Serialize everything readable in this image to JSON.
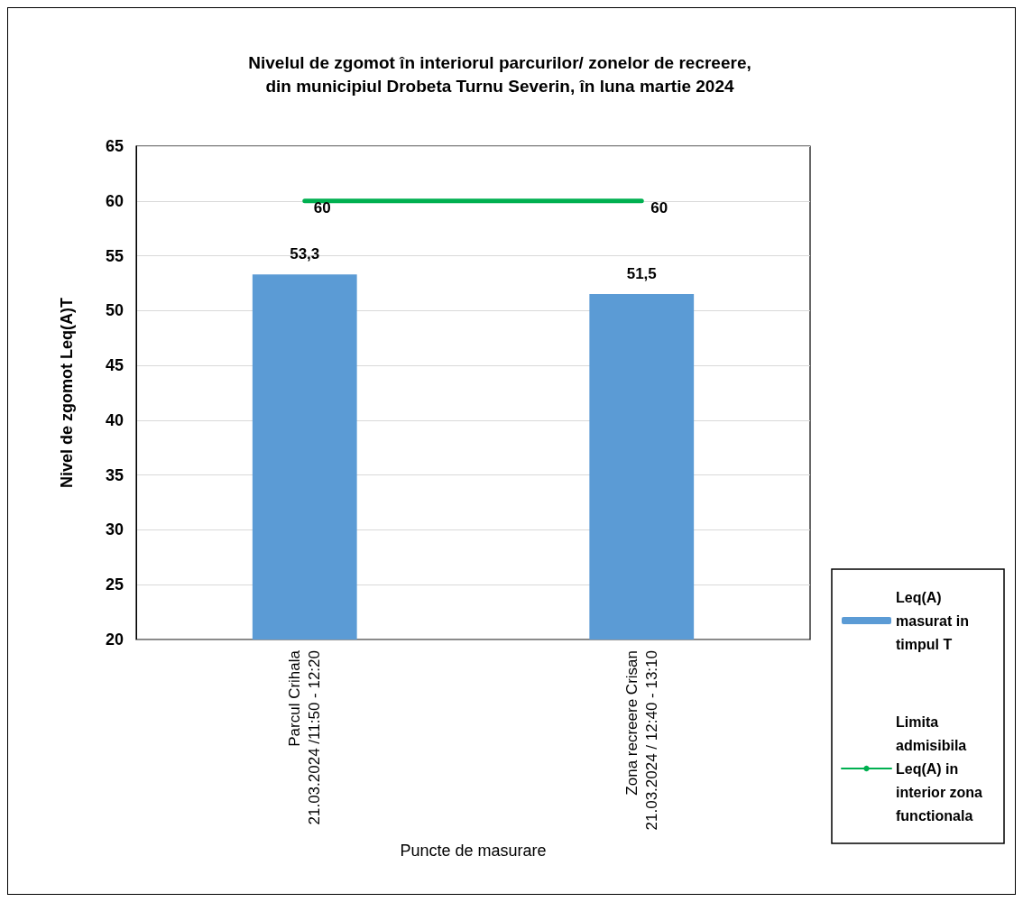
{
  "chart_data": {
    "type": "bar",
    "title": "Nivelul de zgomot în interiorul parcurilor/ zonelor de recreere,\ndin municipiul Drobeta Turnu Severin, în luna martie 2024",
    "xlabel": "Puncte de masurare",
    "ylabel": "Nivel de zgomot Leq(A)T",
    "categories": [
      "Parcul Crihala\n21.03.2024 /11:50 - 12:20",
      "Zona recreere Crisan\n21.03.2024 / 12:40 - 13:10"
    ],
    "series": [
      {
        "name": "Leq(A) masurat in timpul T",
        "color": "#5b9bd5",
        "values": [
          53.3,
          51.5
        ],
        "value_labels": [
          "53,3",
          "51,5"
        ]
      },
      {
        "name": "Limita admisibila Leq(A) in interior zona functionala",
        "type": "line",
        "color": "#00b050",
        "values": [
          60,
          60
        ],
        "value_labels": [
          "60",
          "60"
        ],
        "marker": "none",
        "line_style": "solid"
      }
    ],
    "ylim": [
      20,
      65
    ],
    "yticks": [
      20,
      25,
      30,
      35,
      40,
      45,
      50,
      55,
      60,
      65
    ],
    "grid": "y",
    "legend": "right"
  }
}
